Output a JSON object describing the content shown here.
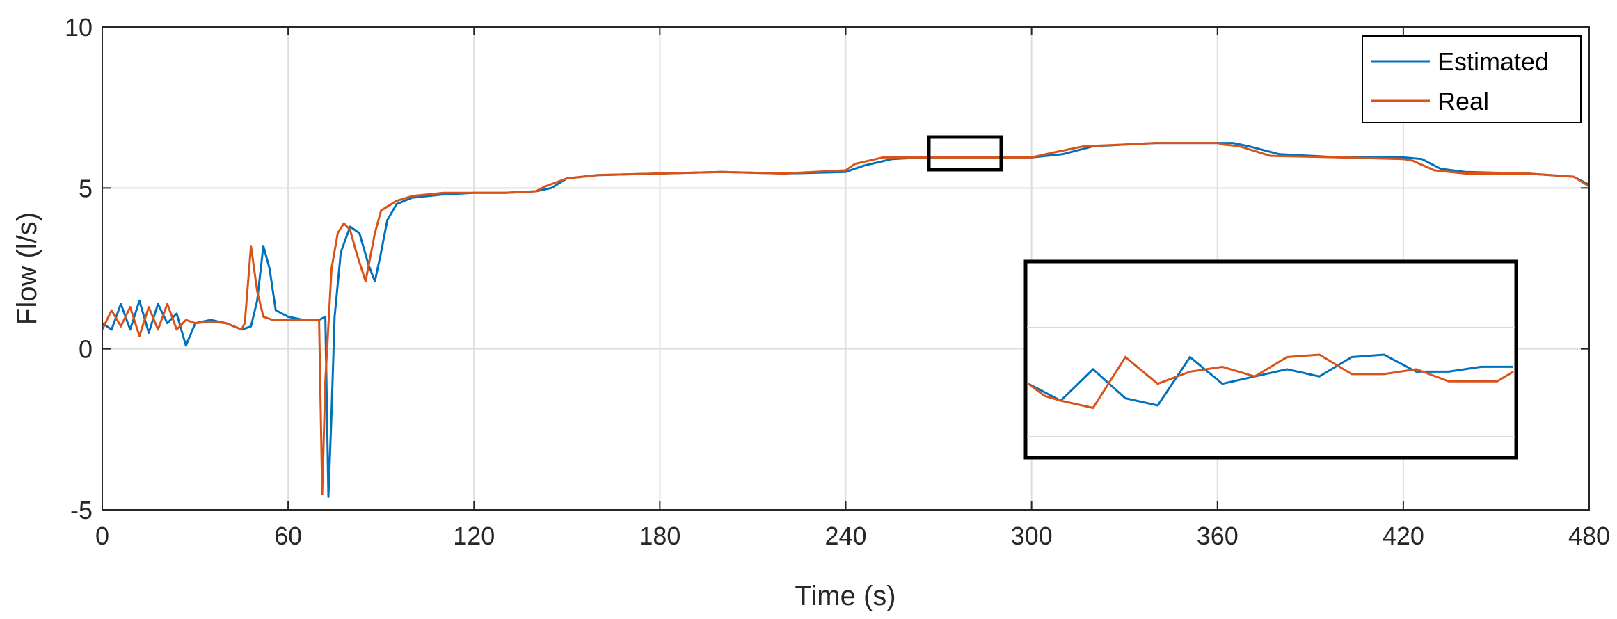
{
  "chart_data": {
    "type": "line",
    "xlabel": "Time (s)",
    "ylabel": "Flow (l/s)",
    "xlim": [
      0,
      480
    ],
    "ylim": [
      -5,
      10
    ],
    "xticks": [
      0,
      60,
      120,
      180,
      240,
      300,
      360,
      420,
      480
    ],
    "yticks": [
      -5,
      0,
      5,
      10
    ],
    "xtick_labels": [
      "0",
      "60",
      "120",
      "180",
      "240",
      "300",
      "360",
      "420",
      "480"
    ],
    "ytick_labels": [
      "-5",
      "0",
      "5",
      "10"
    ],
    "grid": true,
    "legend_position": "top-right",
    "series": [
      {
        "name": "Estimated",
        "color": "#0072BD",
        "x": [
          0,
          3,
          6,
          9,
          12,
          15,
          18,
          21,
          24,
          27,
          30,
          35,
          40,
          45,
          48,
          50,
          52,
          54,
          56,
          60,
          65,
          70,
          72,
          73,
          74,
          75,
          77,
          80,
          83,
          86,
          88,
          90,
          92,
          95,
          100,
          110,
          120,
          130,
          140,
          145,
          150,
          160,
          180,
          200,
          220,
          240,
          246,
          255,
          265,
          275,
          285,
          300,
          310,
          320,
          330,
          340,
          350,
          360,
          365,
          370,
          380,
          400,
          420,
          426,
          432,
          440,
          460,
          475,
          480
        ],
        "y": [
          0.8,
          0.6,
          1.4,
          0.6,
          1.5,
          0.5,
          1.4,
          0.8,
          1.1,
          0.1,
          0.8,
          0.9,
          0.8,
          0.6,
          0.7,
          1.5,
          3.2,
          2.5,
          1.2,
          1.0,
          0.9,
          0.9,
          1.0,
          -4.6,
          -2.0,
          1.0,
          3.0,
          3.8,
          3.6,
          2.6,
          2.1,
          3.0,
          4.0,
          4.5,
          4.7,
          4.8,
          4.85,
          4.85,
          4.9,
          5.0,
          5.3,
          5.4,
          5.45,
          5.5,
          5.45,
          5.5,
          5.7,
          5.9,
          5.95,
          5.95,
          5.95,
          5.95,
          6.05,
          6.3,
          6.35,
          6.4,
          6.4,
          6.4,
          6.4,
          6.3,
          6.05,
          5.95,
          5.95,
          5.9,
          5.6,
          5.5,
          5.45,
          5.35,
          5.1
        ]
      },
      {
        "name": "Real",
        "color": "#D95319",
        "x": [
          0,
          3,
          6,
          9,
          12,
          15,
          18,
          21,
          24,
          27,
          30,
          35,
          40,
          45,
          46,
          48,
          50,
          52,
          55,
          60,
          65,
          70,
          71,
          72,
          74,
          76,
          78,
          80,
          82,
          85,
          86,
          88,
          90,
          95,
          100,
          110,
          120,
          130,
          140,
          143,
          150,
          160,
          180,
          200,
          220,
          240,
          243,
          252,
          262,
          275,
          285,
          300,
          307,
          317,
          330,
          340,
          350,
          360,
          362,
          367,
          377,
          400,
          420,
          423,
          430,
          440,
          460,
          475,
          480
        ],
        "y": [
          0.6,
          1.2,
          0.7,
          1.3,
          0.4,
          1.3,
          0.6,
          1.4,
          0.6,
          0.9,
          0.8,
          0.85,
          0.8,
          0.6,
          0.8,
          3.2,
          1.8,
          1.0,
          0.9,
          0.9,
          0.9,
          0.9,
          -4.5,
          -1.0,
          2.5,
          3.6,
          3.9,
          3.7,
          3.0,
          2.1,
          2.6,
          3.6,
          4.3,
          4.6,
          4.75,
          4.85,
          4.85,
          4.85,
          4.9,
          5.05,
          5.3,
          5.4,
          5.45,
          5.5,
          5.45,
          5.55,
          5.75,
          5.95,
          5.95,
          5.95,
          5.95,
          5.95,
          6.1,
          6.3,
          6.35,
          6.4,
          6.4,
          6.4,
          6.35,
          6.3,
          6.0,
          5.95,
          5.9,
          5.85,
          5.55,
          5.45,
          5.45,
          5.35,
          5.05
        ]
      }
    ],
    "inset": {
      "source_xlim": [
        267,
        290
      ],
      "source_ylim": [
        5.55,
        6.35
      ],
      "series": [
        {
          "name": "Estimated",
          "x": [
            0,
            1,
            2,
            3,
            4,
            5,
            6,
            7,
            8,
            9,
            10,
            11,
            12,
            13,
            14,
            15
          ],
          "y": [
            5.85,
            5.78,
            5.91,
            5.79,
            5.76,
            5.96,
            5.85,
            5.88,
            5.91,
            5.88,
            5.96,
            5.97,
            5.9,
            5.9,
            5.92,
            5.92
          ]
        },
        {
          "name": "Real",
          "x": [
            0,
            0.5,
            1,
            2,
            3,
            4,
            5,
            6,
            7,
            8,
            9,
            10,
            11,
            12,
            13,
            14,
            14.5,
            15
          ],
          "y": [
            5.85,
            5.8,
            5.78,
            5.75,
            5.96,
            5.85,
            5.9,
            5.92,
            5.88,
            5.96,
            5.97,
            5.89,
            5.89,
            5.91,
            5.86,
            5.86,
            5.86,
            5.9
          ]
        }
      ]
    }
  }
}
